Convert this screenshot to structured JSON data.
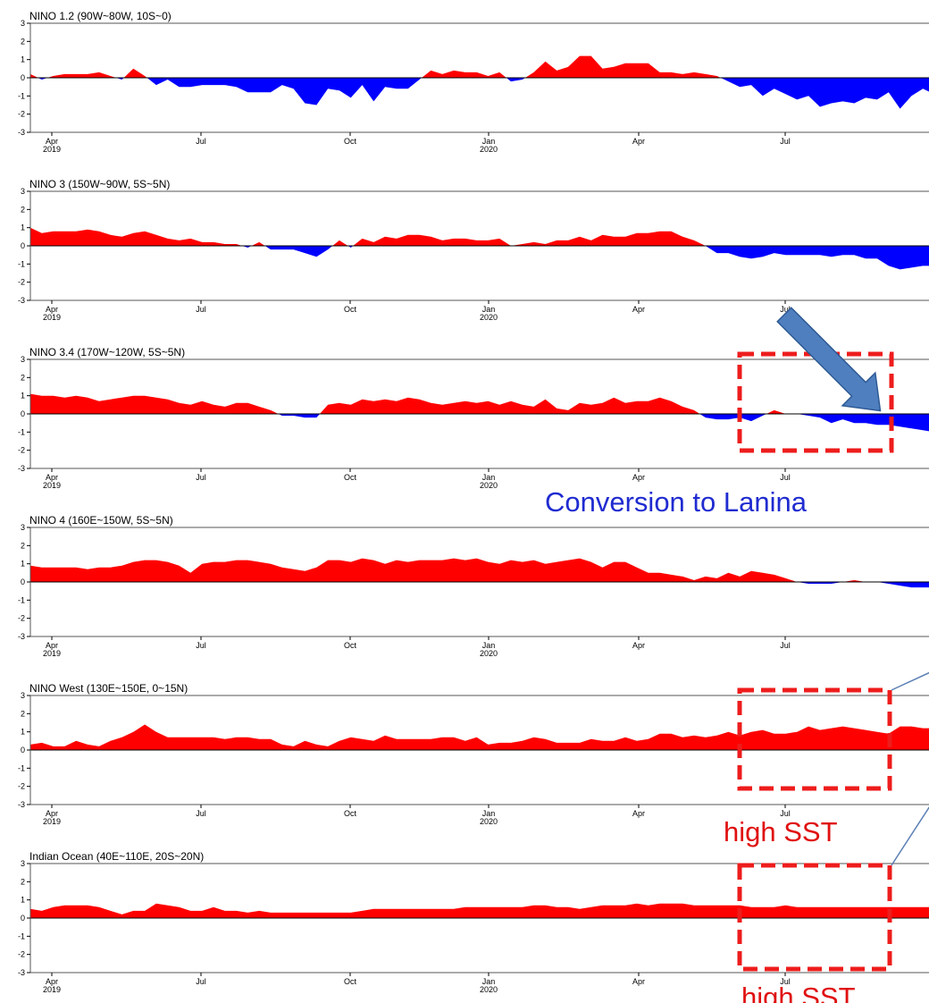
{
  "colors": {
    "positive": "#ff0000",
    "negative": "#0000ff",
    "box": "#ee1c1c",
    "arrow": "#4f7fbf",
    "lanina_text": "#1f2bd0",
    "sst_text": "#e01010"
  },
  "annotations": {
    "lanina": "Conversion to Lanina",
    "sst_1": "high SST",
    "sst_2": "high SST"
  },
  "chart_data": [
    {
      "type": "area",
      "title": "NINO 1.2 (90W~80W, 10S~0)",
      "ylim": [
        -3,
        3
      ],
      "yticks": [
        "3",
        "2",
        "1",
        "0",
        "-1",
        "-2",
        "-3"
      ],
      "xticks": [
        [
          "Apr",
          "2019"
        ],
        [
          "Jul",
          ""
        ],
        [
          "Oct",
          ""
        ],
        [
          "Jan",
          "2020"
        ],
        [
          "Apr",
          ""
        ],
        [
          "Jul",
          ""
        ]
      ],
      "values": [
        0.2,
        -0.1,
        0.1,
        0.2,
        0.2,
        0.2,
        0.3,
        0.1,
        -0.1,
        0.5,
        0.1,
        -0.4,
        -0.1,
        -0.5,
        -0.5,
        -0.4,
        -0.4,
        -0.4,
        -0.5,
        -0.8,
        -0.8,
        -0.8,
        -0.4,
        -0.6,
        -1.4,
        -1.5,
        -0.6,
        -0.7,
        -1.1,
        -0.4,
        -1.3,
        -0.5,
        -0.6,
        -0.6,
        -0.1,
        0.4,
        0.2,
        0.4,
        0.3,
        0.3,
        0.1,
        0.3,
        -0.2,
        -0.1,
        0.3,
        0.9,
        0.4,
        0.6,
        1.2,
        1.2,
        0.5,
        0.6,
        0.8,
        0.8,
        0.8,
        0.3,
        0.3,
        0.2,
        0.3,
        0.2,
        0.1,
        -0.2,
        -0.5,
        -0.4,
        -1.0,
        -0.6,
        -0.9,
        -1.2,
        -1.0,
        -1.6,
        -1.4,
        -1.3,
        -1.4,
        -1.1,
        -1.2,
        -0.8,
        -1.7,
        -1.0,
        -0.6,
        -0.9
      ]
    },
    {
      "type": "area",
      "title": "NINO 3 (150W~90W, 5S~5N)",
      "ylim": [
        -3,
        3
      ],
      "yticks": [
        "3",
        "2",
        "1",
        "0",
        "-1",
        "-2",
        "-3"
      ],
      "xticks": [
        [
          "Apr",
          "2019"
        ],
        [
          "Jul",
          ""
        ],
        [
          "Oct",
          ""
        ],
        [
          "Jan",
          "2020"
        ],
        [
          "Apr",
          ""
        ],
        [
          "Jul",
          ""
        ]
      ],
      "values": [
        1.0,
        0.7,
        0.8,
        0.8,
        0.8,
        0.9,
        0.8,
        0.6,
        0.5,
        0.7,
        0.8,
        0.6,
        0.4,
        0.3,
        0.4,
        0.2,
        0.2,
        0.1,
        0.1,
        -0.1,
        0.2,
        -0.2,
        -0.2,
        -0.2,
        -0.4,
        -0.6,
        -0.2,
        0.3,
        -0.1,
        0.4,
        0.2,
        0.5,
        0.4,
        0.6,
        0.6,
        0.5,
        0.3,
        0.4,
        0.4,
        0.3,
        0.3,
        0.4,
        0.0,
        0.1,
        0.2,
        0.1,
        0.3,
        0.3,
        0.5,
        0.3,
        0.6,
        0.5,
        0.5,
        0.7,
        0.7,
        0.8,
        0.8,
        0.5,
        0.3,
        0.0,
        -0.4,
        -0.4,
        -0.6,
        -0.7,
        -0.6,
        -0.4,
        -0.5,
        -0.5,
        -0.5,
        -0.5,
        -0.6,
        -0.5,
        -0.5,
        -0.7,
        -0.7,
        -1.1,
        -1.3,
        -1.2,
        -1.1,
        -1.1
      ]
    },
    {
      "type": "area",
      "title": "NINO 3.4 (170W~120W, 5S~5N)",
      "ylim": [
        -3,
        3
      ],
      "yticks": [
        "3",
        "2",
        "1",
        "0",
        "-1",
        "-2",
        "-3"
      ],
      "xticks": [
        [
          "Apr",
          "2019"
        ],
        [
          "Jul",
          ""
        ],
        [
          "Oct",
          ""
        ],
        [
          "Jan",
          "2020"
        ],
        [
          "Apr",
          ""
        ],
        [
          "Jul",
          ""
        ]
      ],
      "values": [
        1.1,
        1.0,
        1.0,
        0.9,
        1.0,
        0.9,
        0.7,
        0.8,
        0.9,
        1.0,
        1.0,
        0.9,
        0.8,
        0.6,
        0.5,
        0.7,
        0.5,
        0.4,
        0.6,
        0.6,
        0.4,
        0.2,
        -0.1,
        -0.1,
        -0.2,
        -0.2,
        0.5,
        0.6,
        0.5,
        0.8,
        0.7,
        0.8,
        0.7,
        0.9,
        0.8,
        0.6,
        0.5,
        0.6,
        0.7,
        0.6,
        0.7,
        0.5,
        0.7,
        0.5,
        0.4,
        0.8,
        0.3,
        0.2,
        0.6,
        0.5,
        0.6,
        0.9,
        0.6,
        0.7,
        0.7,
        0.9,
        0.7,
        0.4,
        0.2,
        -0.2,
        -0.3,
        -0.3,
        -0.2,
        -0.4,
        -0.1,
        0.2,
        0.0,
        0.0,
        -0.1,
        -0.2,
        -0.5,
        -0.3,
        -0.5,
        -0.5,
        -0.6,
        -0.6,
        -0.7,
        -0.8,
        -0.9,
        -1.0
      ]
    },
    {
      "type": "area",
      "title": "NINO 4 (160E~150W, 5S~5N)",
      "ylim": [
        -3,
        3
      ],
      "yticks": [
        "3",
        "2",
        "1",
        "0",
        "-1",
        "-2",
        "-3"
      ],
      "xticks": [
        [
          "Apr",
          "2019"
        ],
        [
          "Jul",
          ""
        ],
        [
          "Oct",
          ""
        ],
        [
          "Jan",
          "2020"
        ],
        [
          "Apr",
          ""
        ],
        [
          "Jul",
          ""
        ]
      ],
      "values": [
        0.9,
        0.8,
        0.8,
        0.8,
        0.8,
        0.7,
        0.8,
        0.8,
        0.9,
        1.1,
        1.2,
        1.2,
        1.1,
        0.9,
        0.5,
        1.0,
        1.1,
        1.1,
        1.2,
        1.2,
        1.1,
        1.0,
        0.8,
        0.7,
        0.6,
        0.8,
        1.2,
        1.2,
        1.1,
        1.3,
        1.2,
        1.0,
        1.2,
        1.1,
        1.2,
        1.2,
        1.2,
        1.3,
        1.2,
        1.3,
        1.1,
        1.0,
        1.2,
        1.1,
        1.2,
        1.0,
        1.1,
        1.2,
        1.3,
        1.1,
        0.8,
        1.1,
        1.1,
        0.8,
        0.5,
        0.5,
        0.4,
        0.3,
        0.1,
        0.3,
        0.2,
        0.5,
        0.3,
        0.6,
        0.5,
        0.4,
        0.2,
        0.0,
        -0.1,
        -0.1,
        -0.1,
        0.0,
        0.1,
        0.0,
        0.0,
        -0.1,
        -0.2,
        -0.3,
        -0.3,
        -0.3
      ]
    },
    {
      "type": "area",
      "title": "NINO West (130E~150E, 0~15N)",
      "ylim": [
        -3,
        3
      ],
      "yticks": [
        "3",
        "2",
        "1",
        "0",
        "-1",
        "-2",
        "-3"
      ],
      "xticks": [
        [
          "Apr",
          "2019"
        ],
        [
          "Jul",
          ""
        ],
        [
          "Oct",
          ""
        ],
        [
          "Jan",
          "2020"
        ],
        [
          "Apr",
          ""
        ],
        [
          "Jul",
          ""
        ]
      ],
      "values": [
        0.3,
        0.4,
        0.2,
        0.2,
        0.5,
        0.3,
        0.2,
        0.5,
        0.7,
        1.0,
        1.4,
        1.0,
        0.7,
        0.7,
        0.7,
        0.7,
        0.7,
        0.6,
        0.7,
        0.7,
        0.6,
        0.6,
        0.3,
        0.2,
        0.5,
        0.3,
        0.2,
        0.5,
        0.7,
        0.6,
        0.5,
        0.8,
        0.6,
        0.6,
        0.6,
        0.6,
        0.7,
        0.7,
        0.5,
        0.7,
        0.3,
        0.4,
        0.4,
        0.5,
        0.7,
        0.6,
        0.4,
        0.4,
        0.4,
        0.6,
        0.5,
        0.5,
        0.7,
        0.5,
        0.6,
        0.9,
        0.9,
        0.7,
        0.8,
        0.7,
        0.8,
        1.0,
        0.8,
        1.0,
        1.1,
        0.9,
        0.9,
        1.0,
        1.3,
        1.1,
        1.2,
        1.3,
        1.2,
        1.1,
        1.0,
        0.9,
        1.3,
        1.3,
        1.2,
        1.2
      ]
    },
    {
      "type": "area",
      "title": "Indian Ocean (40E~110E, 20S~20N)",
      "ylim": [
        -3,
        3
      ],
      "yticks": [
        "3",
        "2",
        "1",
        "0",
        "-1",
        "-2",
        "-3"
      ],
      "xticks": [
        [
          "Apr",
          "2019"
        ],
        [
          "Jul",
          ""
        ],
        [
          "Oct",
          ""
        ],
        [
          "Jan",
          "2020"
        ],
        [
          "Apr",
          ""
        ],
        [
          "Jul",
          ""
        ]
      ],
      "values": [
        0.5,
        0.4,
        0.6,
        0.7,
        0.7,
        0.7,
        0.6,
        0.4,
        0.2,
        0.4,
        0.4,
        0.8,
        0.7,
        0.6,
        0.4,
        0.4,
        0.6,
        0.4,
        0.4,
        0.3,
        0.4,
        0.3,
        0.3,
        0.3,
        0.3,
        0.3,
        0.3,
        0.3,
        0.3,
        0.4,
        0.5,
        0.5,
        0.5,
        0.5,
        0.5,
        0.5,
        0.5,
        0.5,
        0.6,
        0.6,
        0.6,
        0.6,
        0.6,
        0.6,
        0.7,
        0.7,
        0.6,
        0.6,
        0.5,
        0.6,
        0.7,
        0.7,
        0.7,
        0.8,
        0.7,
        0.8,
        0.8,
        0.8,
        0.7,
        0.7,
        0.7,
        0.7,
        0.7,
        0.6,
        0.6,
        0.6,
        0.7,
        0.6,
        0.6,
        0.6,
        0.6,
        0.6,
        0.6,
        0.6,
        0.6,
        0.6,
        0.6,
        0.6,
        0.6,
        0.6
      ]
    }
  ]
}
